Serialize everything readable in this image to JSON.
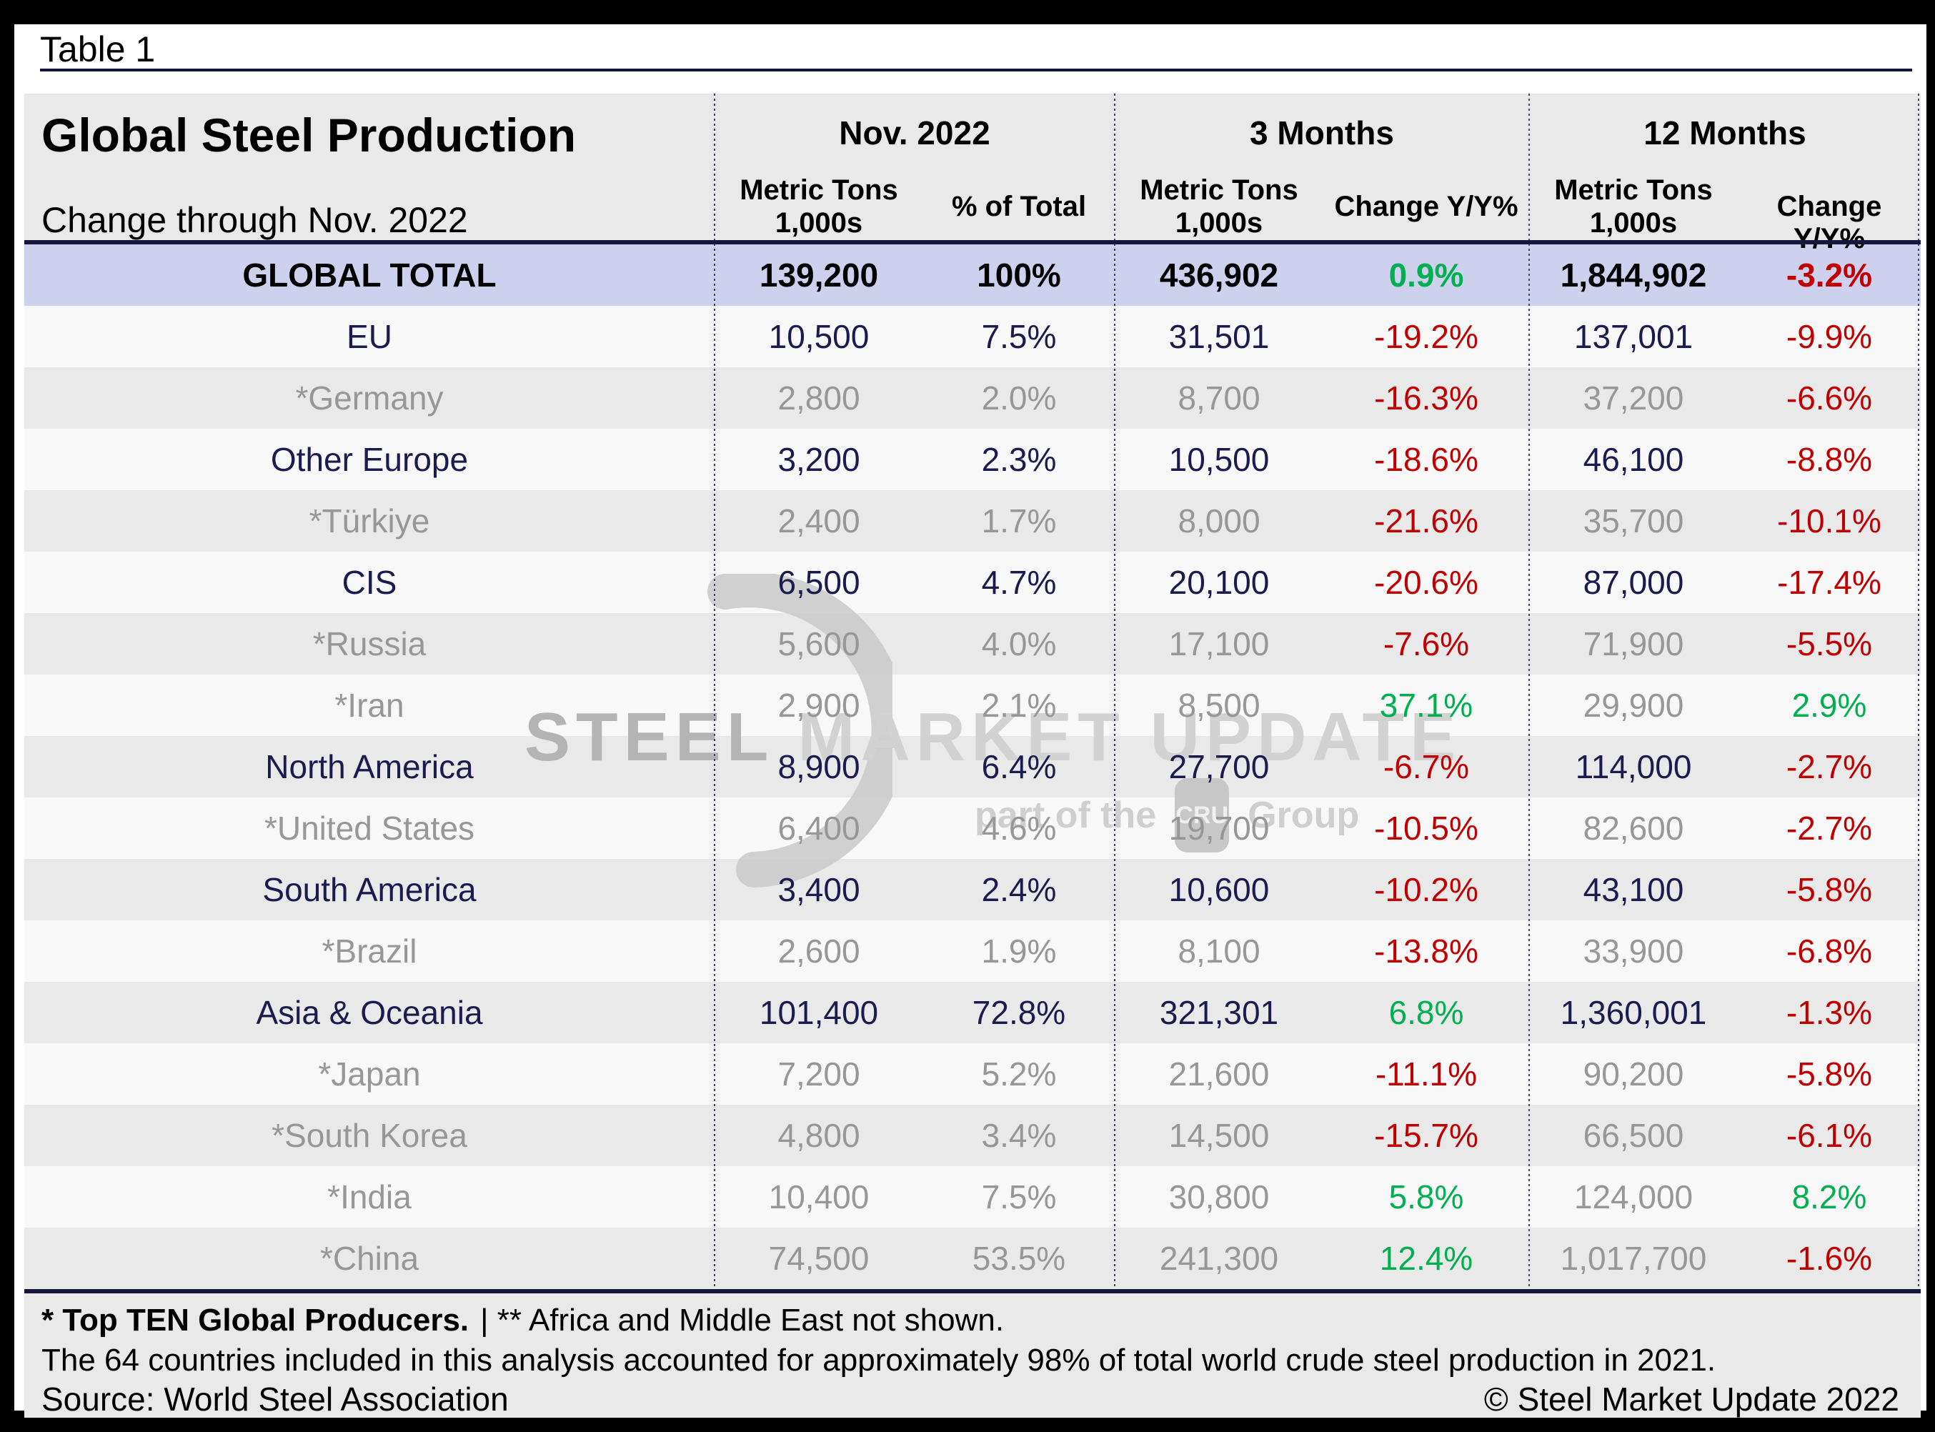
{
  "window": {
    "tag_label": "Table 1"
  },
  "table": {
    "title": "Global Steel Production",
    "subtitle": "Change through Nov. 2022",
    "groups": [
      {
        "label": "Nov. 2022",
        "m1": "Metric Tons",
        "m2": "1,000s",
        "c": "% of Total"
      },
      {
        "label": "3 Months",
        "m1": "Metric Tons",
        "m2": "1,000s",
        "c": "Change Y/Y%"
      },
      {
        "label": "12 Months",
        "m1": "Metric Tons",
        "m2": "1,000s",
        "c": "Change Y/Y%"
      }
    ],
    "rows": [
      {
        "name": "GLOBAL TOTAL",
        "type": "total",
        "values": [
          "139,200",
          "100%",
          "436,902",
          "0.9%",
          "1,844,902",
          "-3.2%"
        ]
      },
      {
        "name": "EU",
        "type": "region",
        "values": [
          "10,500",
          "7.5%",
          "31,501",
          "-19.2%",
          "137,001",
          "-9.9%"
        ]
      },
      {
        "name": "*Germany",
        "type": "country",
        "values": [
          "2,800",
          "2.0%",
          "8,700",
          "-16.3%",
          "37,200",
          "-6.6%"
        ]
      },
      {
        "name": "Other Europe",
        "type": "region",
        "values": [
          "3,200",
          "2.3%",
          "10,500",
          "-18.6%",
          "46,100",
          "-8.8%"
        ]
      },
      {
        "name": "*Türkiye",
        "type": "country",
        "values": [
          "2,400",
          "1.7%",
          "8,000",
          "-21.6%",
          "35,700",
          "-10.1%"
        ]
      },
      {
        "name": "CIS",
        "type": "region",
        "values": [
          "6,500",
          "4.7%",
          "20,100",
          "-20.6%",
          "87,000",
          "-17.4%"
        ]
      },
      {
        "name": "*Russia",
        "type": "country",
        "values": [
          "5,600",
          "4.0%",
          "17,100",
          "-7.6%",
          "71,900",
          "-5.5%"
        ]
      },
      {
        "name": "*Iran",
        "type": "country",
        "values": [
          "2,900",
          "2.1%",
          "8,500",
          "37.1%",
          "29,900",
          "2.9%"
        ]
      },
      {
        "name": "North America",
        "type": "region",
        "values": [
          "8,900",
          "6.4%",
          "27,700",
          "-6.7%",
          "114,000",
          "-2.7%"
        ]
      },
      {
        "name": "*United States",
        "type": "country",
        "values": [
          "6,400",
          "4.6%",
          "19,700",
          "-10.5%",
          "82,600",
          "-2.7%"
        ]
      },
      {
        "name": "South America",
        "type": "region",
        "values": [
          "3,400",
          "2.4%",
          "10,600",
          "-10.2%",
          "43,100",
          "-5.8%"
        ]
      },
      {
        "name": "*Brazil",
        "type": "country",
        "values": [
          "2,600",
          "1.9%",
          "8,100",
          "-13.8%",
          "33,900",
          "-6.8%"
        ]
      },
      {
        "name": "Asia & Oceania",
        "type": "region",
        "values": [
          "101,400",
          "72.8%",
          "321,301",
          "6.8%",
          "1,360,001",
          "-1.3%"
        ]
      },
      {
        "name": "*Japan",
        "type": "country",
        "values": [
          "7,200",
          "5.2%",
          "21,600",
          "-11.1%",
          "90,200",
          "-5.8%"
        ]
      },
      {
        "name": "*South Korea",
        "type": "country",
        "values": [
          "4,800",
          "3.4%",
          "14,500",
          "-15.7%",
          "66,500",
          "-6.1%"
        ]
      },
      {
        "name": "*India",
        "type": "country",
        "values": [
          "10,400",
          "7.5%",
          "30,800",
          "5.8%",
          "124,000",
          "8.2%"
        ]
      },
      {
        "name": "*China",
        "type": "country",
        "values": [
          "74,500",
          "53.5%",
          "241,300",
          "12.4%",
          "1,017,700",
          "-1.6%"
        ]
      }
    ]
  },
  "footnotes": {
    "line1_bold": "* Top TEN Global Producers.",
    "line1_rest": "| ** Africa and Middle East not shown.",
    "line2": "The 64 countries included in this analysis accounted for approximately 98% of total world crude steel production in 2021.",
    "source": "Source: World Steel Association",
    "copyright": "© Steel Market Update 2022"
  },
  "watermark": {
    "line_strong": "STEEL",
    "line_light": " MARKET UPDATE",
    "tagline_pre": "part of the",
    "tagline_box": "CRU",
    "tagline_post": "Group"
  },
  "colors": {
    "positive_change": "#00b050",
    "negative_change": "#c00000",
    "region_text": "#1b1b4f",
    "country_text": "#979797",
    "total_row_bg": "#cdd1ee",
    "table_bg": "#e9e9e9",
    "rule_navy": "#15153d"
  }
}
